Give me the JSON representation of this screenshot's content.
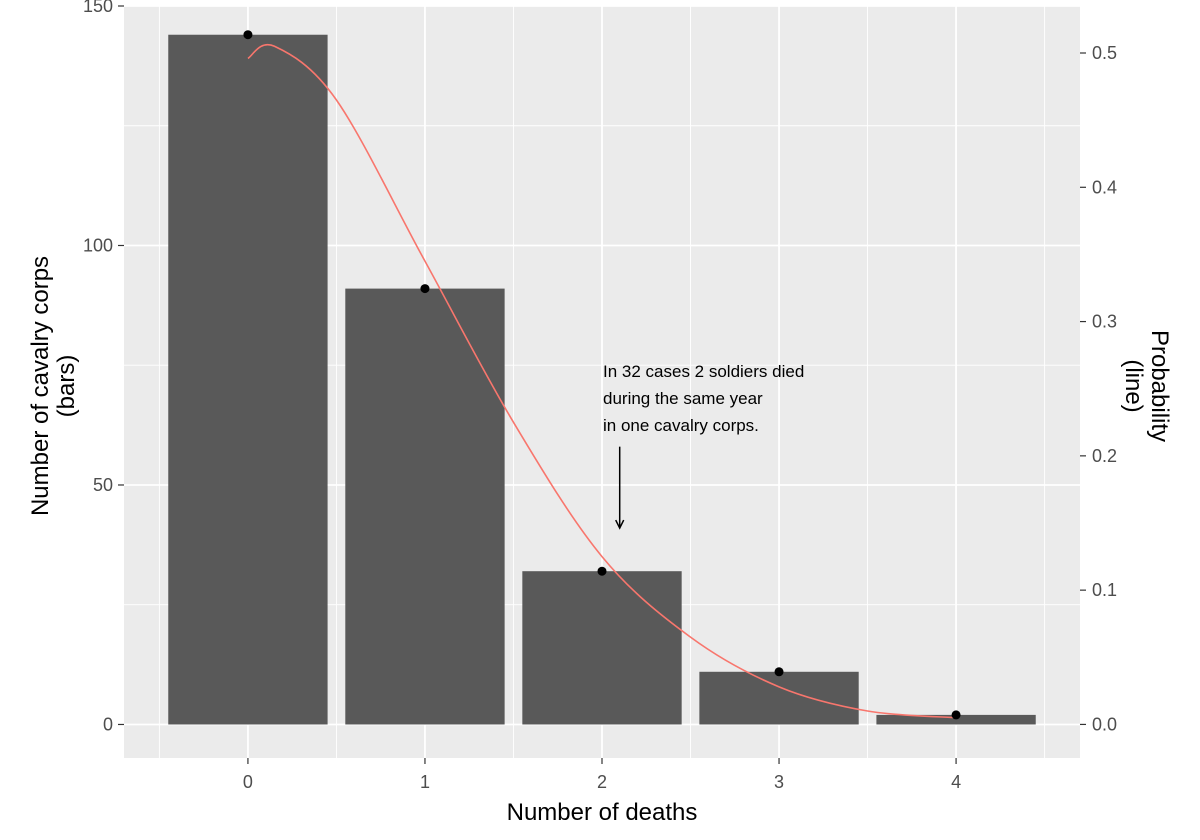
{
  "chart_data": {
    "type": "bar",
    "categories": [
      "0",
      "1",
      "2",
      "3",
      "4"
    ],
    "x": [
      0,
      1,
      2,
      3,
      4
    ],
    "values": [
      144,
      91,
      32,
      11,
      2
    ],
    "points": [
      144,
      91,
      32,
      11,
      2
    ],
    "probability_line": {
      "x": [
        0,
        0.15,
        0.5,
        1,
        1.5,
        2,
        2.5,
        3,
        3.5,
        4
      ],
      "y": [
        0.496,
        0.505,
        0.465,
        0.345,
        0.225,
        0.125,
        0.065,
        0.028,
        0.01,
        0.005
      ]
    },
    "xlabel": "Number of deaths",
    "ylabel_lines": [
      "Number of cavalry corps",
      "(bars)"
    ],
    "y2label_lines": [
      "Probability",
      "(line)"
    ],
    "xlim": [
      -0.7,
      4.7
    ],
    "ylim": [
      -7,
      150
    ],
    "y2lim": [
      -0.025,
      0.535
    ],
    "y_ticks": [
      0,
      50,
      100,
      150
    ],
    "y2_ticks": [
      0.0,
      0.1,
      0.2,
      0.3,
      0.4,
      0.5
    ],
    "y2_tick_labels": [
      "0.0",
      "0.1",
      "0.2",
      "0.3",
      "0.4",
      "0.5"
    ],
    "annotation": {
      "lines": [
        "In 32 cases 2 soldiers died",
        "during the same year",
        "in one cavalry corps."
      ],
      "arrow_x": 2.1,
      "arrow_from_y": 58,
      "arrow_to_y": 41
    },
    "grid": true,
    "colors": {
      "panel": "#ebebeb",
      "grid": "#ffffff",
      "bar": "#595959",
      "line": "#f8766d",
      "point": "#000000"
    }
  }
}
